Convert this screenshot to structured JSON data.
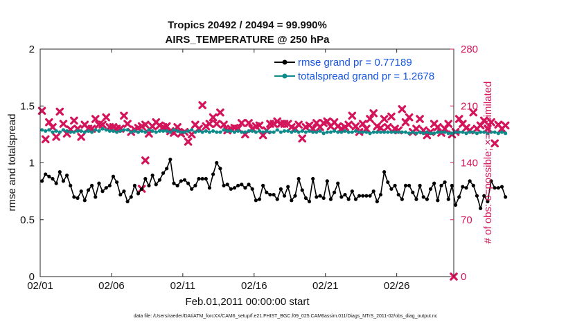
{
  "chart_data": {
    "type": "line",
    "title_line1": "Tropics 20492 / 20494 = 99.990%",
    "title_line2": "AIRS_TEMPERATURE @ 250 hPa",
    "xlabel": "Feb.01,2011 00:00:00 start",
    "ylabel_left": "rmse and totalspread",
    "ylabel_right": "# of obs: o=possible; ×=assimilated",
    "footer": "data file: /Users/raeder/DAI/ATM_forcXX/CAM6_setup/f.e21.FHIST_BGC.f09_025.CAM6assim.011/Diags_NTrS_2011-02/obs_diag_output.nc",
    "x_range_days": [
      0,
      29
    ],
    "x_tick_days": [
      0,
      5,
      10,
      15,
      20,
      25
    ],
    "x_tick_labels": [
      "02/01",
      "02/06",
      "02/11",
      "02/16",
      "02/21",
      "02/26"
    ],
    "ylim_left": [
      0,
      2
    ],
    "y_ticks_left": [
      0,
      0.5,
      1,
      1.5,
      2
    ],
    "y_tick_labels_left": [
      "0",
      "0.5",
      "1",
      "1.5",
      "2"
    ],
    "ylim_right": [
      0,
      280
    ],
    "y_ticks_right": [
      0,
      70,
      140,
      210,
      280
    ],
    "y_tick_labels_right": [
      "0",
      "70",
      "140",
      "210",
      "280"
    ],
    "times_start_day": 0.125,
    "times_step_day": 0.25,
    "series": [
      {
        "name": "rmse",
        "legend": "rmse grand pr = 0.77189",
        "color": "#000000",
        "values": [
          0.84,
          0.9,
          0.88,
          0.86,
          0.82,
          0.92,
          0.84,
          0.89,
          0.8,
          0.7,
          0.69,
          0.75,
          0.67,
          0.76,
          0.8,
          0.7,
          0.82,
          0.75,
          0.78,
          0.8,
          0.88,
          0.83,
          0.72,
          0.75,
          0.66,
          0.7,
          0.8,
          0.73,
          0.77,
          0.86,
          0.8,
          0.89,
          0.81,
          0.85,
          0.91,
          0.95,
          1.03,
          0.82,
          0.8,
          0.84,
          0.85,
          0.82,
          0.77,
          0.8,
          0.86,
          0.86,
          0.86,
          0.78,
          0.9,
          1.0,
          0.95,
          0.8,
          0.81,
          0.77,
          0.78,
          0.8,
          0.81,
          0.78,
          0.81,
          0.77,
          0.67,
          0.68,
          0.8,
          0.74,
          0.72,
          0.72,
          0.68,
          0.77,
          0.71,
          0.79,
          0.67,
          0.71,
          0.86,
          0.76,
          0.69,
          0.66,
          0.86,
          0.7,
          0.71,
          0.69,
          0.84,
          0.68,
          0.74,
          0.82,
          0.7,
          0.72,
          0.68,
          0.75,
          0.68,
          0.71,
          0.71,
          0.71,
          0.71,
          0.75,
          0.66,
          0.72,
          0.92,
          0.83,
          0.77,
          0.8,
          0.72,
          0.68,
          0.8,
          0.8,
          0.74,
          0.68,
          0.8,
          0.7,
          0.68,
          0.77,
          0.82,
          0.67,
          0.8,
          0.83,
          0.68,
          0.8,
          0.63,
          0.7,
          0.79,
          0.78,
          0.84,
          0.8,
          0.71,
          0.6,
          0.71,
          0.66,
          0.84,
          0.78,
          0.78,
          0.79,
          0.7
        ]
      },
      {
        "name": "totalspread",
        "legend": "totalspread grand pr = 1.2678",
        "color": "#0f8a8a",
        "values": [
          1.29,
          1.28,
          1.29,
          1.27,
          1.28,
          1.27,
          1.29,
          1.28,
          1.27,
          1.27,
          1.28,
          1.28,
          1.27,
          1.28,
          1.27,
          1.29,
          1.28,
          1.3,
          1.29,
          1.28,
          1.28,
          1.27,
          1.28,
          1.29,
          1.29,
          1.27,
          1.28,
          1.27,
          1.28,
          1.27,
          1.29,
          1.28,
          1.27,
          1.28,
          1.28,
          1.28,
          1.27,
          1.29,
          1.28,
          1.27,
          1.27,
          1.28,
          1.29,
          1.27,
          1.28,
          1.27,
          1.28,
          1.27,
          1.28,
          1.27,
          1.27,
          1.29,
          1.28,
          1.28,
          1.27,
          1.28,
          1.27,
          1.27,
          1.28,
          1.28,
          1.27,
          1.28,
          1.27,
          1.28,
          1.27,
          1.27,
          1.29,
          1.27,
          1.28,
          1.28,
          1.27,
          1.28,
          1.27,
          1.28,
          1.27,
          1.28,
          1.27,
          1.27,
          1.28,
          1.26,
          1.27,
          1.27,
          1.28,
          1.27,
          1.27,
          1.28,
          1.27,
          1.27,
          1.28,
          1.27,
          1.27,
          1.27,
          1.26,
          1.27,
          1.27,
          1.27,
          1.27,
          1.27,
          1.27,
          1.27,
          1.27,
          1.27,
          1.27,
          1.26,
          1.27,
          1.26,
          1.27,
          1.26,
          1.27,
          1.26,
          1.26,
          1.27,
          1.27,
          1.27,
          1.26,
          1.26,
          1.27,
          1.27,
          1.27,
          1.26,
          1.27,
          1.27,
          1.26,
          1.27,
          1.27,
          1.26,
          1.27,
          1.27,
          1.26,
          1.27,
          1.26
        ]
      },
      {
        "name": "obs_assimilated",
        "color": "#d4145a",
        "values": [
          204,
          169,
          190,
          184,
          172,
          203,
          188,
          176,
          181,
          192,
          182,
          172,
          187,
          182,
          182,
          194,
          187,
          187,
          196,
          184,
          184,
          182,
          182,
          198,
          188,
          178,
          181,
          183,
          185,
          187,
          176,
          185,
          190,
          186,
          184,
          185,
          179,
          177,
          184,
          176,
          178,
          166,
          175,
          187,
          182,
          211,
          185,
          188,
          196,
          188,
          202,
          187,
          180,
          182,
          183,
          182,
          189,
          175,
          189,
          182,
          185,
          186,
          174,
          180,
          188,
          188,
          191,
          188,
          188,
          188,
          184,
          182,
          187,
          170,
          184,
          186,
          182,
          189,
          184,
          189,
          191,
          185,
          190,
          185,
          182,
          184,
          187,
          198,
          185,
          178,
          188,
          182,
          194,
          201,
          185,
          183,
          194,
          184,
          197,
          182,
          180,
          206,
          190,
          196,
          178,
          182,
          194,
          180,
          174,
          178,
          188,
          184,
          177,
          182,
          188,
          175,
          178,
          194,
          188,
          183,
          180,
          202,
          182,
          186,
          192,
          182,
          190,
          164,
          187,
          182,
          186
        ]
      },
      {
        "name": "obs_possible",
        "color": "#d4145a",
        "values": [
          204,
          169,
          190,
          184,
          172,
          203,
          188,
          176,
          181,
          192,
          182,
          172,
          187,
          182,
          182,
          194,
          187,
          187,
          196,
          184,
          184,
          182,
          182,
          198,
          188,
          178,
          181,
          183,
          185,
          187,
          176,
          185,
          190,
          186,
          184,
          185,
          179,
          177,
          184,
          176,
          178,
          166,
          175,
          187,
          182,
          211,
          185,
          188,
          196,
          188,
          202,
          187,
          180,
          182,
          183,
          182,
          189,
          175,
          189,
          182,
          185,
          186,
          174,
          180,
          188,
          188,
          191,
          188,
          188,
          188,
          184,
          182,
          187,
          170,
          184,
          186,
          182,
          189,
          184,
          189,
          191,
          185,
          190,
          185,
          182,
          184,
          187,
          198,
          185,
          178,
          188,
          182,
          194,
          201,
          185,
          183,
          194,
          184,
          197,
          182,
          180,
          206,
          190,
          196,
          178,
          182,
          194,
          180,
          174,
          178,
          188,
          184,
          177,
          182,
          188,
          175,
          178,
          194,
          188,
          183,
          180,
          202,
          182,
          186,
          192,
          182,
          190,
          164,
          187,
          182,
          186
        ]
      }
    ],
    "extra_obs_markers": [
      {
        "x_day": 7.375,
        "y": 143
      },
      {
        "x_day": 7.125,
        "y": 108
      },
      {
        "x_day": 29.0,
        "y": 0
      }
    ]
  }
}
